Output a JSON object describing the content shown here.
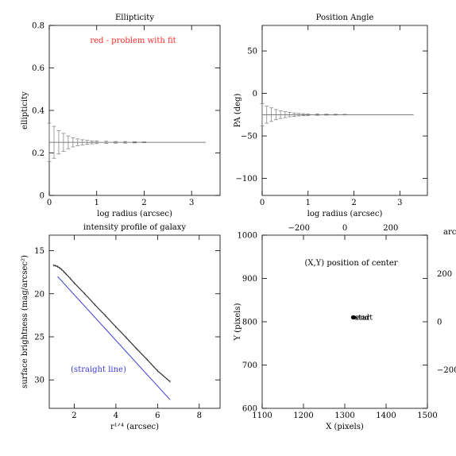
{
  "chart_data": [
    {
      "type": "line",
      "title": "Ellipticity",
      "xlabel": "log radius (arcsec)",
      "ylabel": "ellipticity",
      "xlim": [
        0,
        3.6
      ],
      "ylim": [
        0,
        0.8
      ],
      "xticks": [
        0,
        1,
        2,
        3
      ],
      "yticks": [
        0,
        0.2,
        0.4,
        0.6,
        0.8
      ],
      "x_tick_labels": [
        "0",
        "1",
        "2",
        "3"
      ],
      "y_tick_labels": [
        "0",
        "0.2",
        "0.4",
        "0.6",
        "0.8"
      ],
      "annotation": "red - problem with fit",
      "annotation_color": "#ff2a2a",
      "series": [
        {
          "x": [
            0.0,
            0.1,
            0.2,
            0.3,
            0.4,
            0.5,
            0.6,
            0.7,
            0.8,
            0.9,
            1.0,
            1.2,
            1.4,
            1.6,
            1.8,
            2.0,
            2.4,
            2.8,
            3.3
          ],
          "y": [
            0.25,
            0.25,
            0.25,
            0.25,
            0.25,
            0.25,
            0.25,
            0.25,
            0.25,
            0.25,
            0.25,
            0.25,
            0.25,
            0.25,
            0.25,
            0.25,
            0.25,
            0.25,
            0.25
          ],
          "err": [
            0.09,
            0.075,
            0.055,
            0.042,
            0.03,
            0.022,
            0.016,
            0.012,
            0.009,
            0.007,
            0.006,
            0.005,
            0.004,
            0.004,
            0.003,
            0.002,
            0,
            0,
            0
          ]
        }
      ]
    },
    {
      "type": "line",
      "title": "Position Angle",
      "xlabel": "log radius (arcsec)",
      "ylabel": "PA (deg)",
      "xlim": [
        0,
        3.6
      ],
      "ylim": [
        -120,
        80
      ],
      "xticks": [
        0,
        1,
        2,
        3
      ],
      "yticks": [
        -100,
        -50,
        0,
        50
      ],
      "x_tick_labels": [
        "0",
        "1",
        "2",
        "3"
      ],
      "y_tick_labels": [
        "−100",
        "−50",
        "0",
        "50"
      ],
      "series": [
        {
          "x": [
            0.0,
            0.1,
            0.2,
            0.3,
            0.4,
            0.5,
            0.6,
            0.7,
            0.8,
            0.9,
            1.0,
            1.2,
            1.4,
            1.6,
            1.8,
            2.0,
            2.4,
            2.8,
            3.3
          ],
          "y": [
            -25,
            -25,
            -25,
            -25,
            -25,
            -25,
            -25,
            -25,
            -25,
            -25,
            -25,
            -25,
            -25,
            -25,
            -25,
            -25,
            -25,
            -25,
            -25
          ],
          "err": [
            13,
            10,
            8,
            6,
            4.5,
            3.5,
            2.5,
            2,
            1.5,
            1.2,
            1,
            0.8,
            0.6,
            0.5,
            0.4,
            0,
            0,
            0,
            0
          ]
        }
      ]
    },
    {
      "type": "line",
      "title": "intensity profile of galaxy",
      "xlabel": "r¹ᐟ⁴ (arcsec)",
      "ylabel": "surface brightness (mag/arcsec²)",
      "xlim": [
        0.8,
        9
      ],
      "ylim": [
        33.3,
        13.2
      ],
      "y_reversed": true,
      "xticks": [
        2,
        4,
        6,
        8
      ],
      "yticks": [
        15,
        20,
        25,
        30
      ],
      "x_tick_labels": [
        "2",
        "4",
        "6",
        "8"
      ],
      "y_tick_labels": [
        "15",
        "20",
        "25",
        "30"
      ],
      "annotation": "(straight line)",
      "annotation_color": "#3a3ad8",
      "series": [
        {
          "name": "profile",
          "color": "#333333",
          "x": [
            1.0,
            1.1,
            1.2,
            1.3,
            1.4,
            1.5,
            1.6,
            1.8,
            2.0,
            2.5,
            3.0,
            3.5,
            4.0,
            4.5,
            5.0,
            5.5,
            6.0,
            6.6
          ],
          "y": [
            16.7,
            16.75,
            16.85,
            17.0,
            17.2,
            17.45,
            17.7,
            18.2,
            18.75,
            20.0,
            21.3,
            22.55,
            23.85,
            25.1,
            26.4,
            27.65,
            28.95,
            30.2
          ]
        },
        {
          "name": "straight line",
          "color": "#3a3ad8",
          "x": [
            1.2,
            6.6
          ],
          "y": [
            18.0,
            32.3
          ]
        }
      ]
    },
    {
      "type": "scatter",
      "title": "",
      "xlabel": "X (pixels)",
      "ylabel": "Y (pixels)",
      "xlim": [
        1100,
        1500
      ],
      "ylim": [
        600,
        1000
      ],
      "xticks": [
        1100,
        1200,
        1300,
        1400,
        1500
      ],
      "yticks": [
        600,
        700,
        800,
        900,
        1000
      ],
      "x_tick_labels": [
        "1100",
        "1200",
        "1300",
        "1400",
        "1500"
      ],
      "y_tick_labels": [
        "600",
        "700",
        "800",
        "900",
        "1000"
      ],
      "top_axis": {
        "label": "arcsec",
        "range": [
          -360,
          360
        ],
        "ticks": [
          -200,
          0,
          200
        ],
        "tick_labels": [
          "−200",
          "0",
          "200"
        ]
      },
      "right_axis": {
        "label": "arcsec",
        "range": [
          -360,
          360
        ],
        "ticks": [
          -200,
          0,
          200
        ],
        "tick_labels": [
          "−200",
          "0",
          "200"
        ]
      },
      "annotation": "(X,Y) position of center",
      "points": [
        {
          "x": 1320,
          "y": 810,
          "label": "start"
        },
        {
          "x": 1322,
          "y": 810,
          "label": "end"
        }
      ]
    }
  ]
}
